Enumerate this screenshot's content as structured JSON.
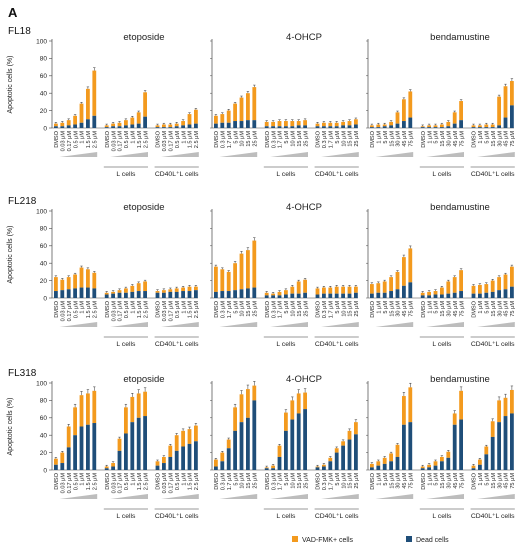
{
  "figure": {
    "panel_letter": "A",
    "ylabel": "Apoptotic cells (%)",
    "yticks": [
      0,
      20,
      40,
      60,
      80,
      100
    ],
    "drugs": [
      {
        "name": "etoposide",
        "doses": [
          "DMSO",
          "0.03 μM",
          "0.17 μM",
          "0.5 μM",
          "1 μM",
          "1.5 μM",
          "2.5 μM"
        ]
      },
      {
        "name": "4-OHCP",
        "doses": [
          "DMSO",
          "0.3 μM",
          "1.7 μM",
          "5 μM",
          "10 μM",
          "15 μM",
          "25 μM"
        ]
      },
      {
        "name": "bendamustine",
        "doses": [
          "DMSO",
          "1 μM",
          "5 μM",
          "15 μM",
          "30 μM",
          "45 μM",
          "75 μM"
        ]
      }
    ],
    "group_labels": [
      "L cells",
      "CD40L⁺L cells"
    ],
    "legend": [
      {
        "label": "VAD-FMK+ cells",
        "color": "#F39A1E"
      },
      {
        "label": "Dead cells",
        "color": "#1F4E79"
      }
    ]
  },
  "chart_data": [
    {
      "type": "bar",
      "title": "FL18",
      "ylim": [
        0,
        100
      ],
      "panels": [
        {
          "drug": "etoposide",
          "dead": [
            2,
            2,
            3,
            4,
            6,
            10,
            14,
            1,
            2,
            2,
            3,
            4,
            5,
            13,
            1,
            1,
            1,
            2,
            3,
            4,
            5
          ],
          "total": [
            5,
            6,
            9,
            14,
            28,
            45,
            66,
            3,
            5,
            6,
            9,
            12,
            18,
            41,
            3,
            4,
            4,
            5,
            8,
            16,
            21
          ]
        },
        {
          "drug": "4-OHCP",
          "dead": [
            5,
            6,
            6,
            8,
            8,
            9,
            9,
            2,
            2,
            2,
            2,
            2,
            3,
            3,
            2,
            2,
            2,
            2,
            3,
            3,
            4
          ],
          "total": [
            14,
            16,
            20,
            28,
            35,
            40,
            47,
            7,
            7,
            8,
            8,
            8,
            8,
            9,
            5,
            6,
            6,
            6,
            7,
            8,
            10
          ]
        },
        {
          "drug": "bendamustine",
          "dead": [
            1,
            1,
            2,
            3,
            5,
            8,
            12,
            1,
            1,
            1,
            1,
            2,
            5,
            9,
            1,
            1,
            1,
            1,
            3,
            12,
            26
          ],
          "total": [
            3,
            4,
            4,
            7,
            18,
            33,
            42,
            2,
            3,
            3,
            4,
            7,
            18,
            31,
            3,
            3,
            4,
            4,
            36,
            48,
            54
          ]
        }
      ]
    },
    {
      "type": "bar",
      "title": "FL218",
      "ylim": [
        0,
        100
      ],
      "panels": [
        {
          "drug": "etoposide",
          "dead": [
            8,
            9,
            10,
            11,
            12,
            12,
            11,
            4,
            5,
            6,
            6,
            7,
            8,
            8,
            6,
            6,
            7,
            7,
            8,
            8,
            9
          ],
          "total": [
            24,
            21,
            24,
            27,
            35,
            33,
            29,
            6,
            7,
            9,
            11,
            14,
            17,
            19,
            8,
            9,
            10,
            11,
            12,
            13,
            13
          ]
        },
        {
          "drug": "4-OHCP",
          "dead": [
            7,
            8,
            8,
            9,
            10,
            11,
            12,
            3,
            3,
            3,
            4,
            5,
            5,
            6,
            4,
            5,
            5,
            5,
            5,
            5,
            6
          ],
          "total": [
            36,
            33,
            30,
            40,
            51,
            55,
            66,
            6,
            5,
            7,
            9,
            13,
            19,
            21,
            11,
            12,
            12,
            13,
            13,
            13,
            13
          ]
        },
        {
          "drug": "bendamustine",
          "dead": [
            5,
            6,
            6,
            8,
            10,
            14,
            18,
            3,
            3,
            4,
            4,
            5,
            6,
            8,
            5,
            5,
            6,
            7,
            9,
            10,
            13
          ],
          "total": [
            16,
            17,
            19,
            24,
            30,
            47,
            57,
            6,
            7,
            8,
            12,
            19,
            24,
            32,
            14,
            15,
            16,
            20,
            24,
            27,
            36
          ]
        }
      ]
    },
    {
      "type": "bar",
      "title": "FL318",
      "ylim": [
        0,
        100
      ],
      "panels": [
        {
          "drug": "etoposide",
          "dead": [
            6,
            8,
            26,
            40,
            50,
            52,
            54,
            2,
            4,
            22,
            42,
            55,
            60,
            62,
            5,
            8,
            15,
            22,
            27,
            30,
            33
          ],
          "total": [
            13,
            20,
            50,
            72,
            86,
            88,
            91,
            4,
            8,
            36,
            72,
            84,
            88,
            90,
            10,
            15,
            28,
            40,
            45,
            47,
            51
          ]
        },
        {
          "drug": "4-OHCP",
          "dead": [
            4,
            10,
            25,
            45,
            55,
            60,
            80,
            2,
            2,
            15,
            45,
            58,
            65,
            70,
            3,
            4,
            10,
            20,
            28,
            35,
            41
          ],
          "total": [
            12,
            20,
            35,
            72,
            87,
            93,
            97,
            3,
            5,
            28,
            66,
            80,
            88,
            89,
            4,
            6,
            14,
            25,
            33,
            45,
            55
          ]
        },
        {
          "drug": "bendamustine",
          "dead": [
            3,
            5,
            7,
            10,
            15,
            52,
            55,
            2,
            3,
            5,
            10,
            14,
            52,
            58,
            2,
            6,
            18,
            38,
            55,
            62,
            65
          ],
          "total": [
            7,
            10,
            14,
            19,
            29,
            85,
            95,
            4,
            6,
            10,
            15,
            21,
            65,
            91,
            5,
            12,
            27,
            56,
            80,
            83,
            92
          ]
        }
      ]
    }
  ]
}
